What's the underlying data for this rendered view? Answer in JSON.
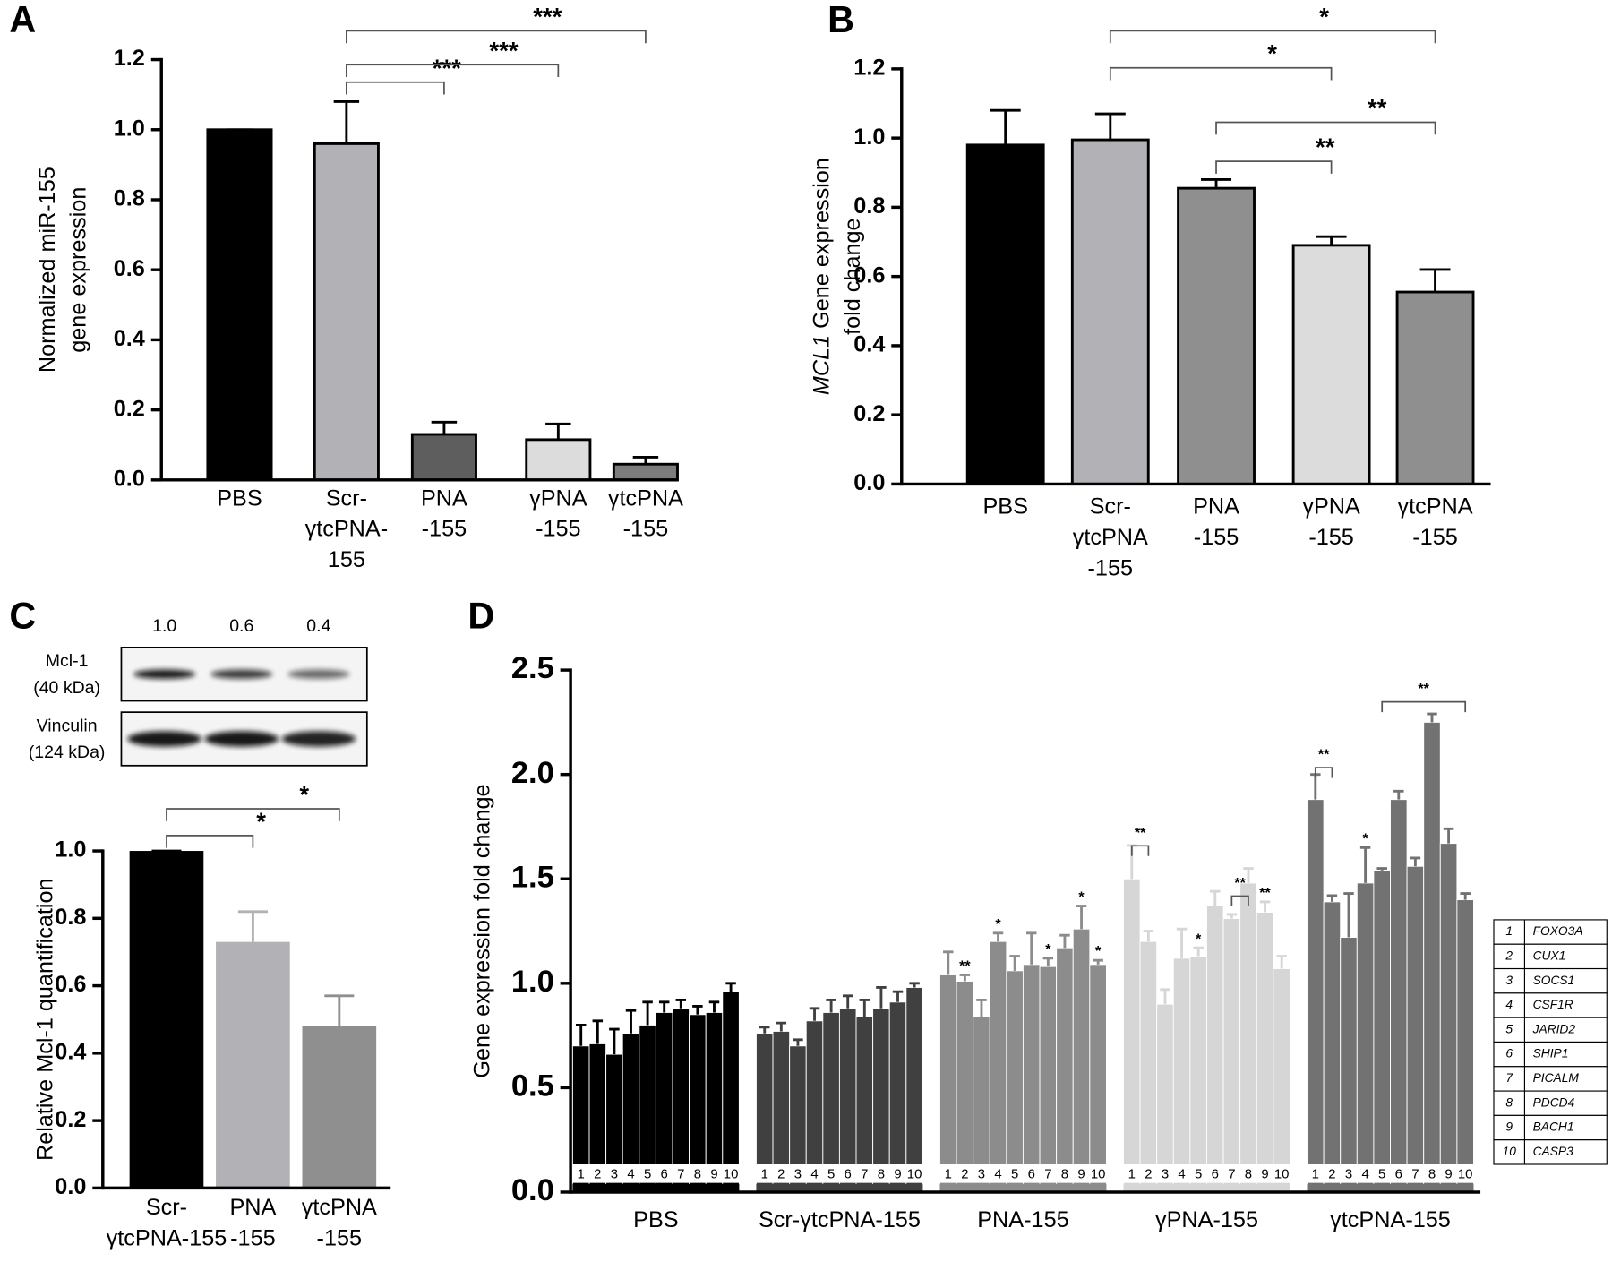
{
  "chart_data": [
    {
      "type": "bar",
      "panel": "A",
      "ylabel": [
        [
          "Normalized miR-155"
        ],
        [
          "gene expression"
        ]
      ],
      "categories": [
        [
          "PBS"
        ],
        [
          "Scr-",
          "γtcPNA-",
          "155"
        ],
        [
          "PNA",
          "-155"
        ],
        [
          "γPNA",
          "-155"
        ],
        [
          "γtcPNA",
          "-155"
        ]
      ],
      "values": [
        1.0,
        0.96,
        0.13,
        0.115,
        0.045
      ],
      "errors": [
        0,
        0.12,
        0.035,
        0.045,
        0.02
      ],
      "colors": [
        "#000000",
        "#b1b1b6",
        "#5e5e5e",
        "#dcdcdc",
        "#7c7c7c"
      ],
      "ylim": [
        0,
        1.2
      ],
      "yticks": [
        {
          "value": 0,
          "label": "0.0"
        },
        0.2,
        0.4,
        0.6,
        0.8,
        {
          "value": 1,
          "label": "1.0"
        },
        1.2
      ],
      "brackets": [
        "***",
        "***",
        "***"
      ]
    },
    {
      "type": "bar",
      "panel": "B",
      "ylabel": [
        [
          "MCL1",
          " Gene expression"
        ],
        [
          "fold change"
        ]
      ],
      "ylabel_italic_first": true,
      "categories": [
        [
          "PBS"
        ],
        [
          "Scr-",
          "γtcPNA",
          "-155"
        ],
        [
          "PNA",
          "-155"
        ],
        [
          "γPNA",
          "-155"
        ],
        [
          "γtcPNA",
          "-155"
        ]
      ],
      "values": [
        0.98,
        0.995,
        0.855,
        0.69,
        0.555
      ],
      "errors": [
        0.1,
        0.075,
        0.025,
        0.025,
        0.065
      ],
      "colors": [
        "#000000",
        "#b1b1b6",
        "#8f8f8f",
        "#dcdcdc",
        "#8f8f8f"
      ],
      "ylim": [
        0,
        1.2
      ],
      "yticks": [
        {
          "value": 0,
          "label": "0.0"
        },
        0.2,
        0.4,
        0.6,
        0.8,
        {
          "value": 1,
          "label": "1.0"
        },
        1.2
      ],
      "brackets": [
        "*",
        "*",
        "**",
        "**"
      ]
    },
    {
      "type": "bar",
      "panel": "C",
      "ylabel": [
        [
          "Relative Mcl-1 quantification"
        ]
      ],
      "categories": [
        [
          "Scr-",
          "γtcPNA-155"
        ],
        [
          "PNA",
          "-155"
        ],
        [
          "γtcPNA",
          "-155"
        ]
      ],
      "values": [
        1.0,
        0.73,
        0.48
      ],
      "errors": [
        0,
        0.09,
        0.09
      ],
      "colors": [
        "#000000",
        "#b1b1b6",
        "#8f8f8f"
      ],
      "ylim": [
        0,
        1.0
      ],
      "yticks": [
        {
          "value": 0,
          "label": "0.0"
        },
        0.2,
        0.4,
        0.6,
        0.8,
        {
          "value": 1,
          "label": "1.0"
        }
      ],
      "brackets": [
        "*",
        "*"
      ]
    },
    {
      "type": "grouped_bar",
      "panel": "D",
      "ylabel": [
        [
          "Gene expression fold change"
        ]
      ],
      "ylim": [
        0,
        2.5
      ],
      "yticks": [
        {
          "value": 0,
          "label": "0.0"
        },
        0.5,
        {
          "value": 1,
          "label": "1.0"
        },
        1.5,
        {
          "value": 2,
          "label": "2.0"
        },
        2.5
      ],
      "bar_numbers": [
        1,
        2,
        3,
        4,
        5,
        6,
        7,
        8,
        9,
        10
      ],
      "groups": [
        {
          "name": "PBS",
          "color": "#000000",
          "values": [
            0.7,
            0.71,
            0.66,
            0.76,
            0.8,
            0.86,
            0.88,
            0.85,
            0.86,
            0.96
          ],
          "errors": [
            0.1,
            0.11,
            0.12,
            0.11,
            0.11,
            0.05,
            0.04,
            0.04,
            0.05,
            0.04
          ],
          "stars": [
            null,
            null,
            null,
            null,
            null,
            null,
            null,
            null,
            null,
            null
          ],
          "brackets": []
        },
        {
          "name": "Scr-γtcPNA-155",
          "color": "#404040",
          "values": [
            0.76,
            0.77,
            0.7,
            0.82,
            0.86,
            0.88,
            0.84,
            0.88,
            0.91,
            0.98
          ],
          "errors": [
            0.03,
            0.04,
            0.03,
            0.06,
            0.06,
            0.06,
            0.08,
            0.1,
            0.05,
            0.02
          ],
          "stars": [
            null,
            null,
            null,
            null,
            null,
            null,
            null,
            null,
            null,
            null
          ],
          "brackets": []
        },
        {
          "name": "PNA-155",
          "color": "#8c8c8c",
          "values": [
            1.04,
            1.01,
            0.84,
            1.2,
            1.06,
            1.09,
            1.08,
            1.17,
            1.26,
            1.09
          ],
          "errors": [
            0.11,
            0.03,
            0.08,
            0.04,
            0.07,
            0.15,
            0.04,
            0.06,
            0.11,
            0.02
          ],
          "stars": [
            null,
            "**",
            null,
            "*",
            null,
            null,
            "*",
            null,
            "*",
            "*"
          ],
          "brackets": []
        },
        {
          "name": "γPNA-155",
          "color": "#d6d6d6",
          "values": [
            1.5,
            1.2,
            0.9,
            1.12,
            1.13,
            1.37,
            1.31,
            1.48,
            1.34,
            1.07
          ],
          "errors": [
            0.16,
            0.05,
            0.07,
            0.14,
            0.04,
            0.07,
            0.02,
            0.07,
            0.05,
            0.06
          ],
          "stars": [
            null,
            null,
            null,
            null,
            "*",
            null,
            null,
            null,
            "**",
            null
          ],
          "brackets": [
            "**",
            "**"
          ]
        },
        {
          "name": "γtcPNA-155",
          "color": "#727272",
          "values": [
            1.88,
            1.39,
            1.22,
            1.48,
            1.54,
            1.88,
            1.56,
            2.25,
            1.67,
            1.4
          ],
          "errors": [
            0.12,
            0.03,
            0.21,
            0.17,
            0.01,
            0.04,
            0.04,
            0.04,
            0.07,
            0.03
          ],
          "stars": [
            null,
            null,
            null,
            "*",
            null,
            null,
            null,
            null,
            null,
            null
          ],
          "brackets": [
            "**",
            "**"
          ]
        }
      ],
      "legend": [
        {
          "number": 1,
          "gene": "FOXO3A"
        },
        {
          "number": 2,
          "gene": "CUX1"
        },
        {
          "number": 3,
          "gene": "SOCS1"
        },
        {
          "number": 4,
          "gene": "CSF1R"
        },
        {
          "number": 5,
          "gene": "JARID2"
        },
        {
          "number": 6,
          "gene": "SHIP1"
        },
        {
          "number": 7,
          "gene": "PICALM"
        },
        {
          "number": 8,
          "gene": "PDCD4"
        },
        {
          "number": 9,
          "gene": "BACH1"
        },
        {
          "number": 10,
          "gene": "CASP3"
        }
      ]
    }
  ],
  "blot": {
    "ratios": [
      {
        "value": 1,
        "label": "1.0"
      },
      0.6,
      0.4
    ],
    "rows": [
      [
        "Mcl-1",
        "(40 kDa)"
      ],
      [
        "Vinculin",
        "(124 kDa)"
      ]
    ]
  }
}
